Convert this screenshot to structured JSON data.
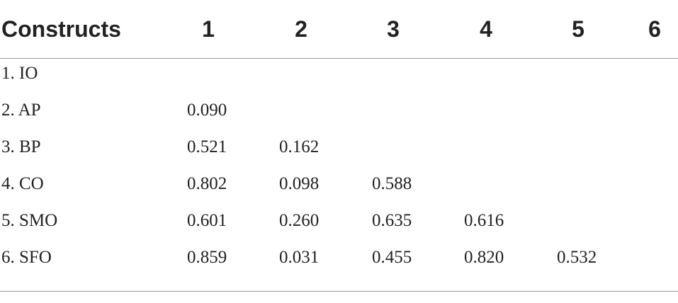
{
  "table": {
    "headers": [
      "Constructs",
      "1",
      "2",
      "3",
      "4",
      "5",
      "6"
    ],
    "rows": [
      {
        "label": "1. IO",
        "values": []
      },
      {
        "label": "2. AP",
        "values": [
          "0.090"
        ]
      },
      {
        "label": "3. BP",
        "values": [
          "0.521",
          "0.162"
        ]
      },
      {
        "label": "4. CO",
        "values": [
          "0.802",
          "0.098",
          "0.588"
        ]
      },
      {
        "label": "5. SMO",
        "values": [
          "0.601",
          "0.260",
          "0.635",
          "0.616"
        ]
      },
      {
        "label": "6. SFO",
        "values": [
          "0.859",
          "0.031",
          "0.455",
          "0.820",
          "0.532"
        ]
      }
    ]
  }
}
